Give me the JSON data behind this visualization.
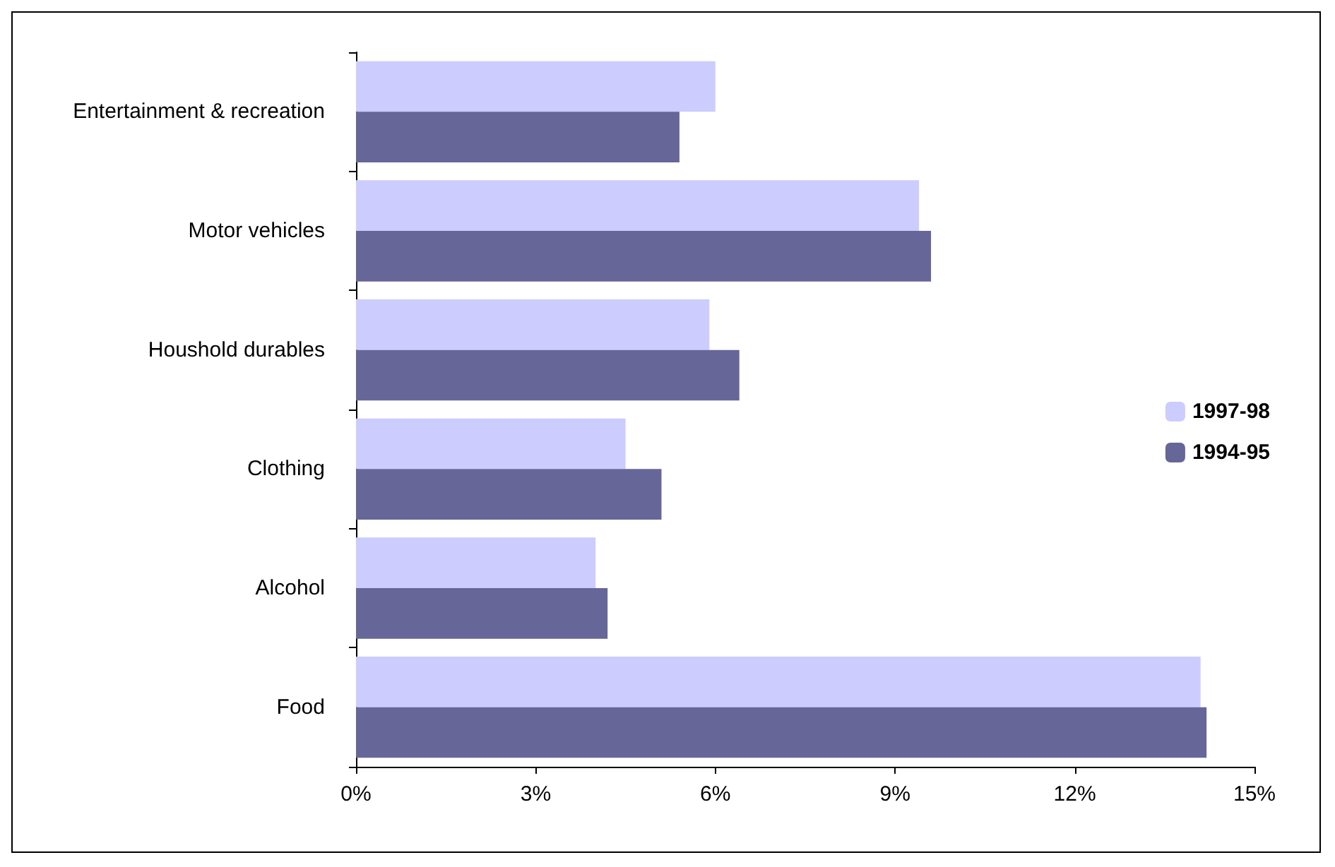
{
  "chart_data": {
    "type": "bar",
    "orientation": "horizontal",
    "categories": [
      "Entertainment & recreation",
      "Motor vehicles",
      "Houshold durables",
      "Clothing",
      "Alcohol",
      "Food"
    ],
    "series": [
      {
        "name": "1997-98",
        "color": "#ccccff",
        "values": [
          6.0,
          9.4,
          5.9,
          4.5,
          4.0,
          14.1
        ]
      },
      {
        "name": "1994-95",
        "color": "#666699",
        "values": [
          5.4,
          9.6,
          6.4,
          5.1,
          4.2,
          14.2
        ]
      }
    ],
    "xlim": [
      0,
      15
    ],
    "xticks": [
      {
        "value": 0,
        "label": "0%"
      },
      {
        "value": 3,
        "label": "3%"
      },
      {
        "value": 6,
        "label": "6%"
      },
      {
        "value": 9,
        "label": "9%"
      },
      {
        "value": 12,
        "label": "12%"
      },
      {
        "value": 15,
        "label": "15%"
      }
    ],
    "grid": false,
    "legend": "right"
  }
}
